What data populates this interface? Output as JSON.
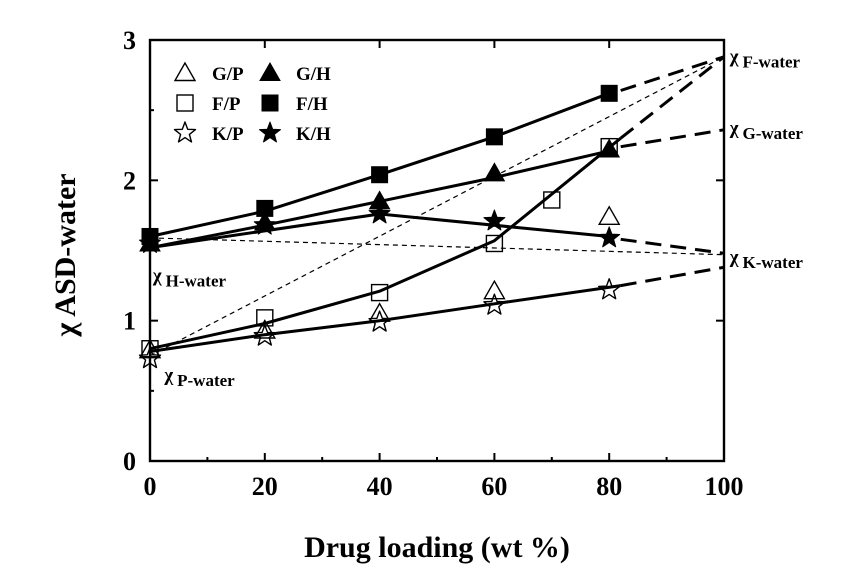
{
  "chart_data": {
    "type": "line",
    "xlabel": "Drug loading (wt %)",
    "ylabel_symbol": "χ",
    "ylabel_text": "ASD-water",
    "xlim": [
      0,
      100
    ],
    "ylim": [
      0,
      3
    ],
    "x_ticks": [
      "0",
      "20",
      "40",
      "60",
      "80",
      "100"
    ],
    "y_ticks": [
      "0",
      "1",
      "2",
      "3"
    ],
    "legend_position": "top-left",
    "series": [
      {
        "name": "G/P",
        "marker": "triangle-open",
        "x": [
          0,
          20,
          40,
          60,
          80
        ],
        "y": [
          0.79,
          0.93,
          1.05,
          1.21,
          1.74
        ]
      },
      {
        "name": "G/H",
        "marker": "triangle-filled",
        "x": [
          0,
          20,
          40,
          60,
          80
        ],
        "y": [
          1.55,
          1.7,
          1.85,
          2.05,
          2.22
        ]
      },
      {
        "name": "F/P",
        "marker": "square-open",
        "x": [
          0,
          20,
          40,
          60,
          70,
          80
        ],
        "y": [
          0.8,
          1.02,
          1.2,
          1.55,
          1.86,
          2.24
        ]
      },
      {
        "name": "F/H",
        "marker": "square-filled",
        "x": [
          0,
          20,
          40,
          60,
          80
        ],
        "y": [
          1.6,
          1.8,
          2.04,
          2.31,
          2.62
        ]
      },
      {
        "name": "K/P",
        "marker": "star-open",
        "x": [
          0,
          20,
          40,
          60,
          80
        ],
        "y": [
          0.73,
          0.89,
          0.99,
          1.11,
          1.22
        ]
      },
      {
        "name": "K/H",
        "marker": "star-filled",
        "x": [
          0,
          20,
          40,
          60,
          80
        ],
        "y": [
          1.55,
          1.68,
          1.76,
          1.71,
          1.59
        ]
      }
    ],
    "fit_lines": [
      {
        "x": [
          0,
          20,
          40,
          60,
          80
        ],
        "y": [
          1.6,
          1.78,
          2.04,
          2.31,
          2.62
        ]
      },
      {
        "x": [
          0,
          20,
          40,
          60,
          80
        ],
        "y": [
          1.52,
          1.68,
          1.85,
          2.02,
          2.21
        ]
      },
      {
        "x": [
          0,
          40,
          80
        ],
        "y": [
          1.52,
          1.76,
          1.6
        ]
      },
      {
        "x": [
          0,
          20,
          40,
          60,
          82
        ],
        "y": [
          0.8,
          0.98,
          1.21,
          1.57,
          2.3
        ]
      },
      {
        "x": [
          0,
          20,
          40,
          60,
          82
        ],
        "y": [
          0.78,
          0.9,
          1.0,
          1.12,
          1.25
        ]
      }
    ],
    "extrapolations": [
      {
        "x": [
          82,
          100
        ],
        "y": [
          2.64,
          2.88
        ]
      },
      {
        "x": [
          82,
          100
        ],
        "y": [
          2.24,
          2.36
        ]
      },
      {
        "x": [
          82,
          100
        ],
        "y": [
          1.58,
          1.48
        ]
      },
      {
        "x": [
          82,
          100
        ],
        "y": [
          2.3,
          2.88
        ]
      },
      {
        "x": [
          82,
          100
        ],
        "y": [
          1.25,
          1.38
        ]
      }
    ],
    "thin_dashed_lines": [
      {
        "x": [
          0,
          100
        ],
        "y": [
          1.59,
          1.47
        ]
      },
      {
        "x": [
          0,
          100
        ],
        "y": [
          0.75,
          2.88
        ]
      }
    ],
    "annotations": [
      {
        "symbol": "χ",
        "sub": "F-water",
        "x": 101,
        "y": 2.84
      },
      {
        "symbol": "χ",
        "sub": "G-water",
        "x": 101,
        "y": 2.33
      },
      {
        "symbol": "χ",
        "sub": "K-water",
        "x": 101,
        "y": 1.41
      },
      {
        "symbol": "χ",
        "sub": "H-water",
        "x": 0.5,
        "y": 1.28
      },
      {
        "symbol": "χ",
        "sub": "P-water",
        "x": 2.5,
        "y": 0.57
      }
    ]
  }
}
